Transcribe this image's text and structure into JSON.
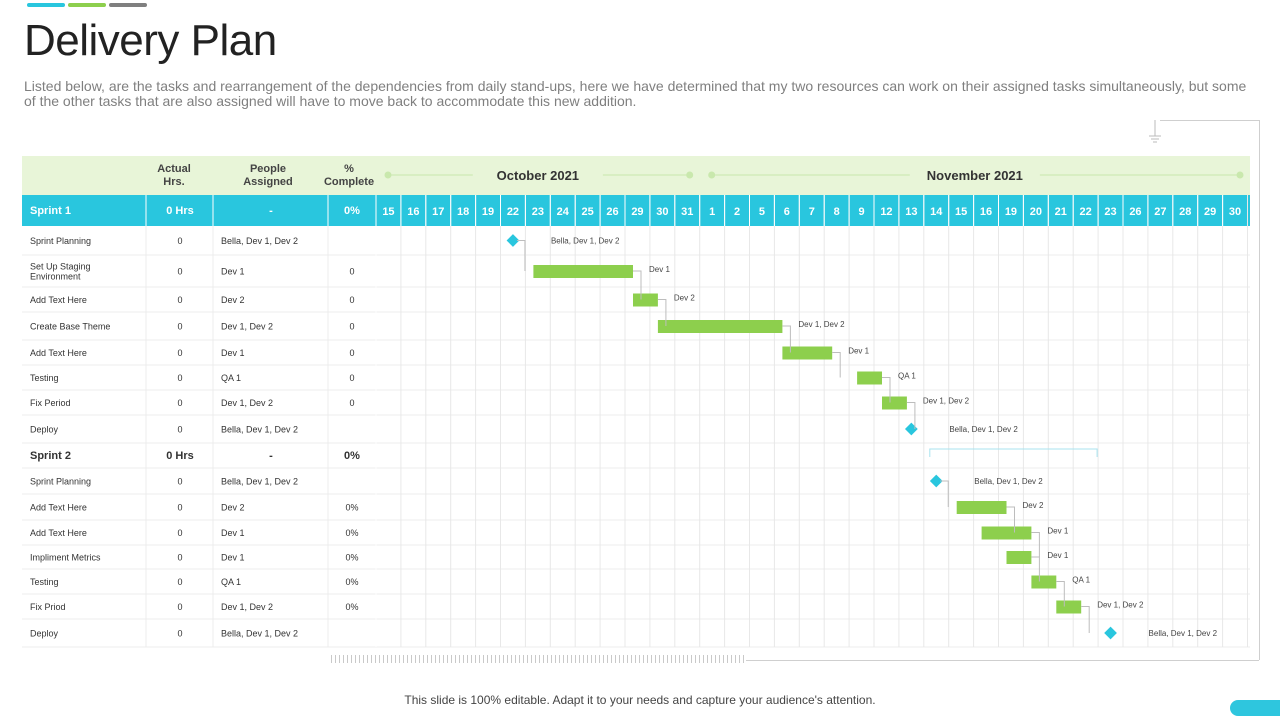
{
  "title": "Delivery Plan",
  "subtitle": "Listed below, are the tasks and rearrangement of the dependencies from daily stand-ups, here we have determined that my two resources can work on their assigned tasks simultaneously, but some of the other tasks that are also assigned will have to move back to accommodate this new addition.",
  "footer": "This slide is 100% editable. Adapt it to your needs and capture your audience's attention.",
  "colors": {
    "teal": "#29c6de",
    "green": "#8dcf4d",
    "header_bg": "#e8f5d8",
    "top_bar": [
      "#29c6de",
      "#8dcf4d",
      "#7f7f7f"
    ]
  },
  "icons": {
    "milestone": "diamond-icon"
  },
  "table": {
    "headers": {
      "actual": "Actual Hrs.",
      "people": "People Assigned",
      "complete": "% Complete"
    },
    "months": [
      "October 2021",
      "November 2021"
    ],
    "days": [
      "15",
      "16",
      "17",
      "18",
      "19",
      "22",
      "23",
      "24",
      "25",
      "26",
      "29",
      "30",
      "31",
      "1",
      "2",
      "5",
      "6",
      "7",
      "8",
      "9",
      "12",
      "13",
      "14",
      "15",
      "16",
      "19",
      "20",
      "21",
      "22",
      "23",
      "26",
      "27",
      "28",
      "29",
      "30"
    ],
    "rows": [
      {
        "kind": "sprint",
        "task": "Sprint 1",
        "hrs": "0 Hrs",
        "people": "-",
        "complete": "0%"
      },
      {
        "kind": "task",
        "task": "Sprint Planning",
        "hrs": "0",
        "people": "Bella, Dev 1, Dev 2",
        "complete": "",
        "bar": {
          "type": "milestone",
          "start": 5,
          "end": 5,
          "label": "Bella, Dev 1, Dev 2"
        }
      },
      {
        "kind": "task",
        "task": "Set Up Staging Environment",
        "hrs": "0",
        "people": "Dev 1",
        "complete": "0",
        "bar": {
          "type": "bar",
          "start": 6,
          "end": 10,
          "label": "Dev 1"
        }
      },
      {
        "kind": "task",
        "task": "Add Text Here",
        "hrs": "0",
        "people": "Dev 2",
        "complete": "0",
        "bar": {
          "type": "bar",
          "start": 10,
          "end": 11,
          "label": "Dev 2"
        }
      },
      {
        "kind": "task",
        "task": "Create Base Theme",
        "hrs": "0",
        "people": "Dev 1, Dev 2",
        "complete": "0",
        "bar": {
          "type": "bar",
          "start": 11,
          "end": 16,
          "label": "Dev 1, Dev 2"
        }
      },
      {
        "kind": "task",
        "task": "Add Text Here",
        "hrs": "0",
        "people": "Dev 1",
        "complete": "0",
        "bar": {
          "type": "bar",
          "start": 16,
          "end": 18,
          "label": "Dev 1"
        }
      },
      {
        "kind": "task",
        "task": "Testing",
        "hrs": "0",
        "people": "QA 1",
        "complete": "0",
        "bar": {
          "type": "bar",
          "start": 19,
          "end": 20,
          "label": "QA 1"
        }
      },
      {
        "kind": "task",
        "task": "Fix Period",
        "hrs": "0",
        "people": "Dev 1, Dev 2",
        "complete": "0",
        "bar": {
          "type": "bar",
          "start": 20,
          "end": 21,
          "label": "Dev 1, Dev 2"
        }
      },
      {
        "kind": "task",
        "task": "Deploy",
        "hrs": "0",
        "people": "Bella, Dev 1, Dev 2",
        "complete": "",
        "bar": {
          "type": "milestone",
          "start": 21,
          "end": 21,
          "label": "Bella, Dev 1, Dev 2"
        }
      },
      {
        "kind": "sprint",
        "task": "Sprint 2",
        "hrs": "0 Hrs",
        "people": "-",
        "complete": "0%"
      },
      {
        "kind": "task",
        "task": "Sprint Planning",
        "hrs": "0",
        "people": "Bella, Dev 1, Dev 2",
        "complete": "",
        "bar": {
          "type": "milestone",
          "start": 22,
          "end": 22,
          "label": "Bella, Dev 1, Dev 2"
        }
      },
      {
        "kind": "task",
        "task": "Add Text Here",
        "hrs": "0",
        "people": "Dev 2",
        "complete": "0%",
        "bar": {
          "type": "bar",
          "start": 23,
          "end": 25,
          "label": "Dev 2"
        }
      },
      {
        "kind": "task",
        "task": "Add Text Here",
        "hrs": "0",
        "people": "Dev 1",
        "complete": "0%",
        "bar": {
          "type": "bar",
          "start": 24,
          "end": 26,
          "label": "Dev 1"
        }
      },
      {
        "kind": "task",
        "task": "Impliment Metrics",
        "hrs": "0",
        "people": "Dev 1",
        "complete": "0%",
        "bar": {
          "type": "bar",
          "start": 25,
          "end": 26,
          "label": "Dev 1"
        }
      },
      {
        "kind": "task",
        "task": "Testing",
        "hrs": "0",
        "people": "QA 1",
        "complete": "0%",
        "bar": {
          "type": "bar",
          "start": 26,
          "end": 27,
          "label": "QA 1"
        }
      },
      {
        "kind": "task",
        "task": "Fix Priod",
        "hrs": "0",
        "people": "Dev 1, Dev 2",
        "complete": "0%",
        "bar": {
          "type": "bar",
          "start": 27,
          "end": 28,
          "label": "Dev 1, Dev 2"
        }
      },
      {
        "kind": "task",
        "task": "Deploy",
        "hrs": "0",
        "people": "Bella, Dev 1, Dev 2",
        "complete": "",
        "bar": {
          "type": "milestone",
          "start": 29,
          "end": 29,
          "label": "Bella, Dev 1, Dev 2"
        }
      }
    ]
  }
}
